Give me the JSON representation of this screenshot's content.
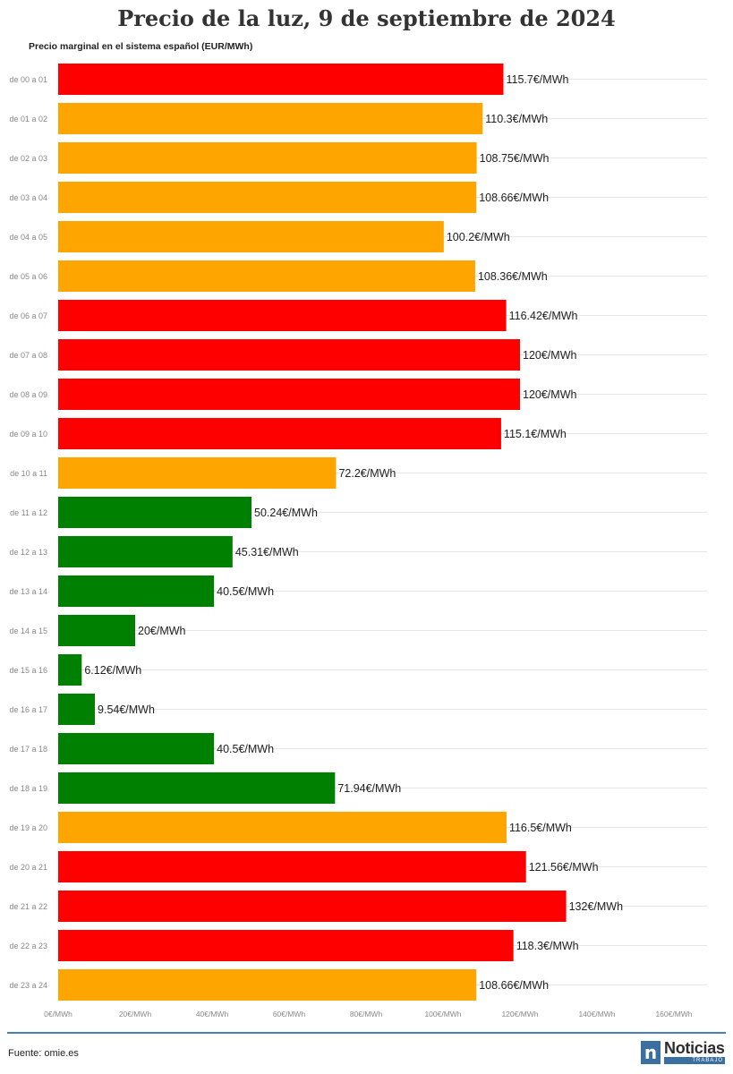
{
  "title": "Precio de la luz, 9 de septiembre de 2024",
  "subtitle": "Precio marginal en el sistema español (EUR/MWh)",
  "footer": {
    "source": "Fuente: omie.es"
  },
  "logo": {
    "mark": "n",
    "word": "Noticias",
    "sub": "TRABAJO"
  },
  "colors": {
    "red": "#ff0000",
    "orange": "#ffa500",
    "green": "#008000",
    "grid": "#e6e6e6",
    "rule": "#4a7fb3"
  },
  "chart_data": {
    "type": "bar",
    "orientation": "horizontal",
    "value_suffix": "€/MWh",
    "categories": [
      "de 00 a 01",
      "de 01 a 02",
      "de 02 a 03",
      "de 03 a 04",
      "de 04 a 05",
      "de 05 a 06",
      "de 06 a 07",
      "de 07 a 08",
      "de 08 a 09",
      "de 09 a 10",
      "de 10 a 11",
      "de 11 a 12",
      "de 12 a 13",
      "de 13 a 14",
      "de 14 a 15",
      "de 15 a 16",
      "de 16 a 17",
      "de 17 a 18",
      "de 18 a 19",
      "de 19 a 20",
      "de 20 a 21",
      "de 21 a 22",
      "de 22 a 23",
      "de 23 a 24"
    ],
    "values": [
      115.7,
      110.3,
      108.75,
      108.66,
      100.2,
      108.36,
      116.42,
      120,
      120,
      115.1,
      72.2,
      50.24,
      45.31,
      40.5,
      20,
      6.12,
      9.54,
      40.5,
      71.94,
      116.5,
      121.56,
      132,
      118.3,
      108.66
    ],
    "bar_colors": [
      "red",
      "orange",
      "orange",
      "orange",
      "orange",
      "orange",
      "red",
      "red",
      "red",
      "red",
      "orange",
      "green",
      "green",
      "green",
      "green",
      "green",
      "green",
      "green",
      "green",
      "orange",
      "red",
      "red",
      "red",
      "orange"
    ],
    "x_ticks": [
      "0€/MWh",
      "20€/MWh",
      "40€/MWh",
      "60€/MWh",
      "80€/MWh",
      "100€/MWh",
      "120€/MWh",
      "140€/MWh",
      "160€/MWh"
    ],
    "xlim": [
      0,
      160
    ],
    "grid": true
  }
}
